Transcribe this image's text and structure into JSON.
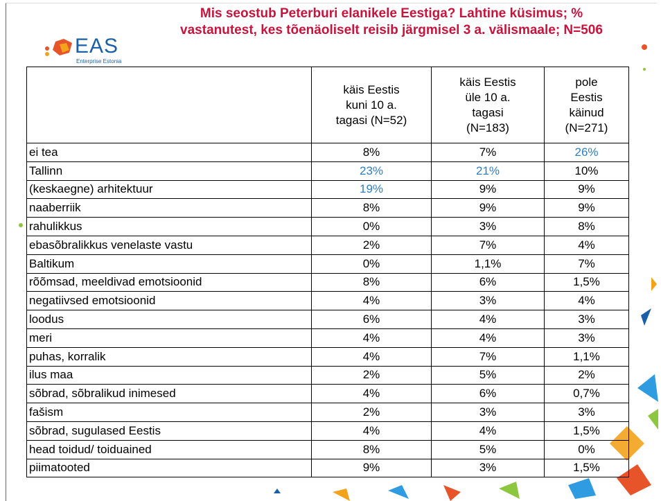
{
  "header": {
    "title": [
      "Mis seostub Peterburi elanikele Eestiga? Lahtine küsimus; %",
      "vastanutest, kes tõenäoliselt reisib järgmisel 3 a. välismaale; N=506"
    ],
    "logo": "EAS",
    "logo_subtitle": "Enterprise Estonia"
  },
  "table": {
    "columns": [
      "",
      "käis Eestis\nkuni 10 a.\ntagasi (N=52)",
      "käis Eestis\nüle 10 a.\ntagasi\n(N=183)",
      "pole\nEestis\nkäinud\n(N=271)"
    ],
    "rows": [
      [
        "ei tea",
        "8%",
        "7%",
        "26%"
      ],
      [
        "Tallinn",
        "23%",
        "21%",
        "10%"
      ],
      [
        "(keskaegne) arhitektuur",
        "19%",
        "9%",
        "9%"
      ],
      [
        "naaberriik",
        "8%",
        "9%",
        "9%"
      ],
      [
        "rahulikkus",
        "0%",
        "3%",
        "8%"
      ],
      [
        "ebasõbralikkus venelaste vastu",
        "2%",
        "7%",
        "4%"
      ],
      [
        "Baltikum",
        "0%",
        "1,1%",
        "7%"
      ],
      [
        "rõõmsad, meeldivad emotsioonid",
        "8%",
        "6%",
        "1,5%"
      ],
      [
        "negatiivsed emotsioonid",
        "4%",
        "3%",
        "4%"
      ],
      [
        "loodus",
        "6%",
        "4%",
        "3%"
      ],
      [
        "meri",
        "4%",
        "4%",
        "3%"
      ],
      [
        "puhas, korralik",
        "4%",
        "7%",
        "1,1%"
      ],
      [
        "ilus maa",
        "2%",
        "5%",
        "2%"
      ],
      [
        "sõbrad, sõbralikud inimesed",
        "4%",
        "6%",
        "0,7%"
      ],
      [
        "fašism",
        "2%",
        "3%",
        "3%"
      ],
      [
        "sõbrad, sugulased Eestis",
        "4%",
        "4%",
        "1,5%"
      ],
      [
        "head toidud/ toiduained",
        "8%",
        "5%",
        "0%"
      ],
      [
        "piimatooted",
        "9%",
        "3%",
        "1,5%"
      ]
    ],
    "highlight_color": "#2f7fc1",
    "highlighted": [
      [
        0,
        3
      ],
      [
        1,
        1
      ],
      [
        1,
        2
      ],
      [
        2,
        1
      ]
    ]
  }
}
